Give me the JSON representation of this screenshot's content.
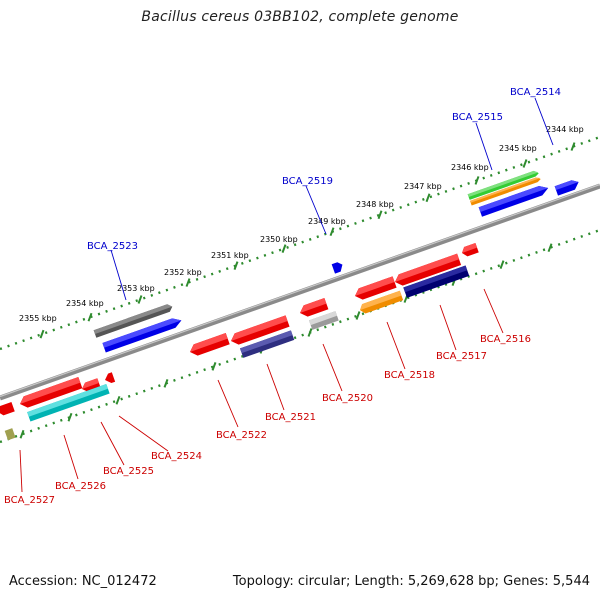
{
  "title": "Bacillus cereus 03BB102, complete genome",
  "accession": "Accession: NC_012472",
  "summary": "Topology: circular; Length: 5,269,628 bp; Genes: 5,544",
  "colors": {
    "backbone": "#8c8c8c",
    "tick": "#2e8b2e",
    "label_forward": "#0000cc",
    "label_reverse": "#cc0000"
  },
  "kbp_labels": [
    "2344 kbp",
    "2345 kbp",
    "2346 kbp",
    "2347 kbp",
    "2348 kbp",
    "2349 kbp",
    "2350 kbp",
    "2351 kbp",
    "2352 kbp",
    "2353 kbp",
    "2354 kbp",
    "2355 kbp"
  ],
  "genes_forward": [
    {
      "label": "BCA_2514"
    },
    {
      "label": "BCA_2515"
    },
    {
      "label": "BCA_2519"
    },
    {
      "label": "BCA_2523"
    }
  ],
  "genes_reverse": [
    {
      "label": "BCA_2516"
    },
    {
      "label": "BCA_2517"
    },
    {
      "label": "BCA_2518"
    },
    {
      "label": "BCA_2520"
    },
    {
      "label": "BCA_2521"
    },
    {
      "label": "BCA_2522"
    },
    {
      "label": "BCA_2524"
    },
    {
      "label": "BCA_2525"
    },
    {
      "label": "BCA_2526"
    },
    {
      "label": "BCA_2527"
    }
  ]
}
